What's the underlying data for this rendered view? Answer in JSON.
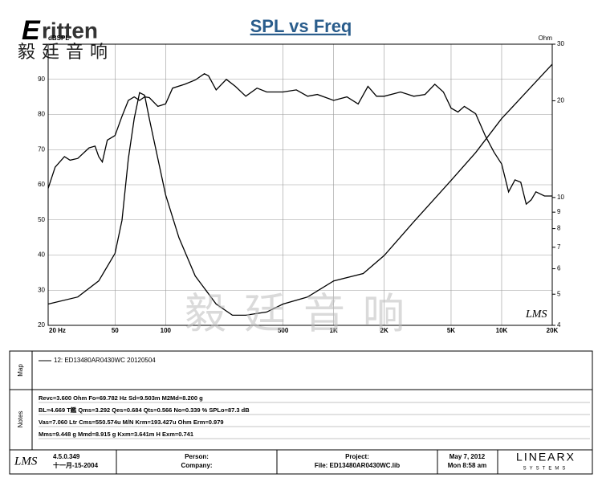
{
  "header": {
    "logo_initial": "E",
    "logo_rest": "ritten",
    "logo_chinese": "毅廷音响"
  },
  "watermark": "毅廷音响",
  "chart_data": {
    "type": "line",
    "title": "SPL vs Freq",
    "ylabel": "dBSPL",
    "y2label": "Ohm",
    "brand_mark": "LMS",
    "xscale": "log",
    "y2scale": "log",
    "grid": true,
    "xlim": [
      20,
      20000
    ],
    "xticks": [
      {
        "value": 20,
        "label": "20 Hz"
      },
      50,
      100,
      500,
      {
        "value": 1000,
        "label": "1K"
      },
      {
        "value": 2000,
        "label": "2K"
      },
      {
        "value": 5000,
        "label": "5K"
      },
      {
        "value": 10000,
        "label": "10K"
      },
      {
        "value": 20000,
        "label": "20K"
      }
    ],
    "ylim": [
      20,
      100
    ],
    "yticks": [
      20,
      30,
      40,
      50,
      60,
      70,
      80,
      90
    ],
    "y2lim": [
      4,
      30
    ],
    "y2ticks": [
      4,
      5,
      6,
      7,
      8,
      9,
      10,
      20,
      30
    ],
    "series": [
      {
        "name": "12: ED13480AR0430WC 20120504",
        "color": "#000000",
        "x": [
          20,
          22,
          25,
          27,
          30,
          35,
          38,
          40,
          42,
          45,
          50,
          55,
          60,
          65,
          70,
          75,
          80,
          90,
          100,
          110,
          130,
          150,
          170,
          180,
          200,
          230,
          260,
          300,
          350,
          400,
          500,
          600,
          700,
          800,
          1000,
          1200,
          1400,
          1600,
          1800,
          2000,
          2500,
          3000,
          3500,
          4000,
          4500,
          5000,
          5500,
          6000,
          7000,
          8000,
          9000,
          10000,
          11000,
          12000,
          13000,
          14000,
          15000,
          16000,
          18000,
          20000
        ],
        "values": [
          59,
          65,
          68,
          67,
          67.5,
          70.5,
          71,
          68,
          66.5,
          72.7,
          74,
          79.5,
          84,
          85,
          84,
          85,
          84.8,
          82.3,
          83,
          87.5,
          88.6,
          89.8,
          91.6,
          91,
          87,
          90,
          88,
          85.2,
          87.5,
          86.4,
          86.4,
          87,
          85.2,
          85.7,
          84,
          85,
          83,
          88,
          85.2,
          85.2,
          86.4,
          85.2,
          85.7,
          88.6,
          86.4,
          81.8,
          80.7,
          82.3,
          80.2,
          73.9,
          69.3,
          65.9,
          58,
          61.4,
          60.7,
          54.5,
          55.7,
          58,
          56.8,
          56.8
        ]
      },
      {
        "color": "#000000",
        "axis": "y2",
        "x": [
          20,
          30,
          40,
          50,
          55,
          60,
          65,
          70,
          75,
          80,
          90,
          100,
          120,
          150,
          200,
          250,
          300,
          400,
          500,
          700,
          1000,
          1500,
          2000,
          3000,
          5000,
          7000,
          10000,
          15000,
          20000
        ],
        "values": [
          4.66,
          4.9,
          5.5,
          6.7,
          8.5,
          13.2,
          17.6,
          21.2,
          20.8,
          17.6,
          13.2,
          10.2,
          7.5,
          5.7,
          4.66,
          4.3,
          4.3,
          4.4,
          4.66,
          4.9,
          5.5,
          5.8,
          6.6,
          8.4,
          11.3,
          13.8,
          17.6,
          22.1,
          26
        ]
      }
    ]
  },
  "map": {
    "label": "Map"
  },
  "notes": {
    "label": "Notes",
    "lines": [
      "Revc=3.600 Ohm  Fo=69.782 Hz  Sd=9.503m M2Md=8.200 g",
      "BL=4.669 T鑑  Qms=3.292  Qes=0.684  Qts=0.566  No=0.339 %  SPLo=87.3 dB",
      "Vas=7.060 Ltr  Cms=550.574u M/N  Krm=193.427u Ohm  Erm=0.979",
      "Mms=9.448 g  Mmd=8.915 g  Kxm=3.641m H  Exm=0.741"
    ]
  },
  "footer": {
    "logo": "LMS",
    "version": "4.5.0.349",
    "date_built": "十一月-15-2004",
    "person": "Person:",
    "company": "Company:",
    "project": "Project:",
    "file": "File: ED13480AR0430WC.lib",
    "date": "May 7, 2012",
    "time": "Mon 8:58 am",
    "brand": "LINEARX",
    "brand_sub": "SYSTEMS"
  }
}
